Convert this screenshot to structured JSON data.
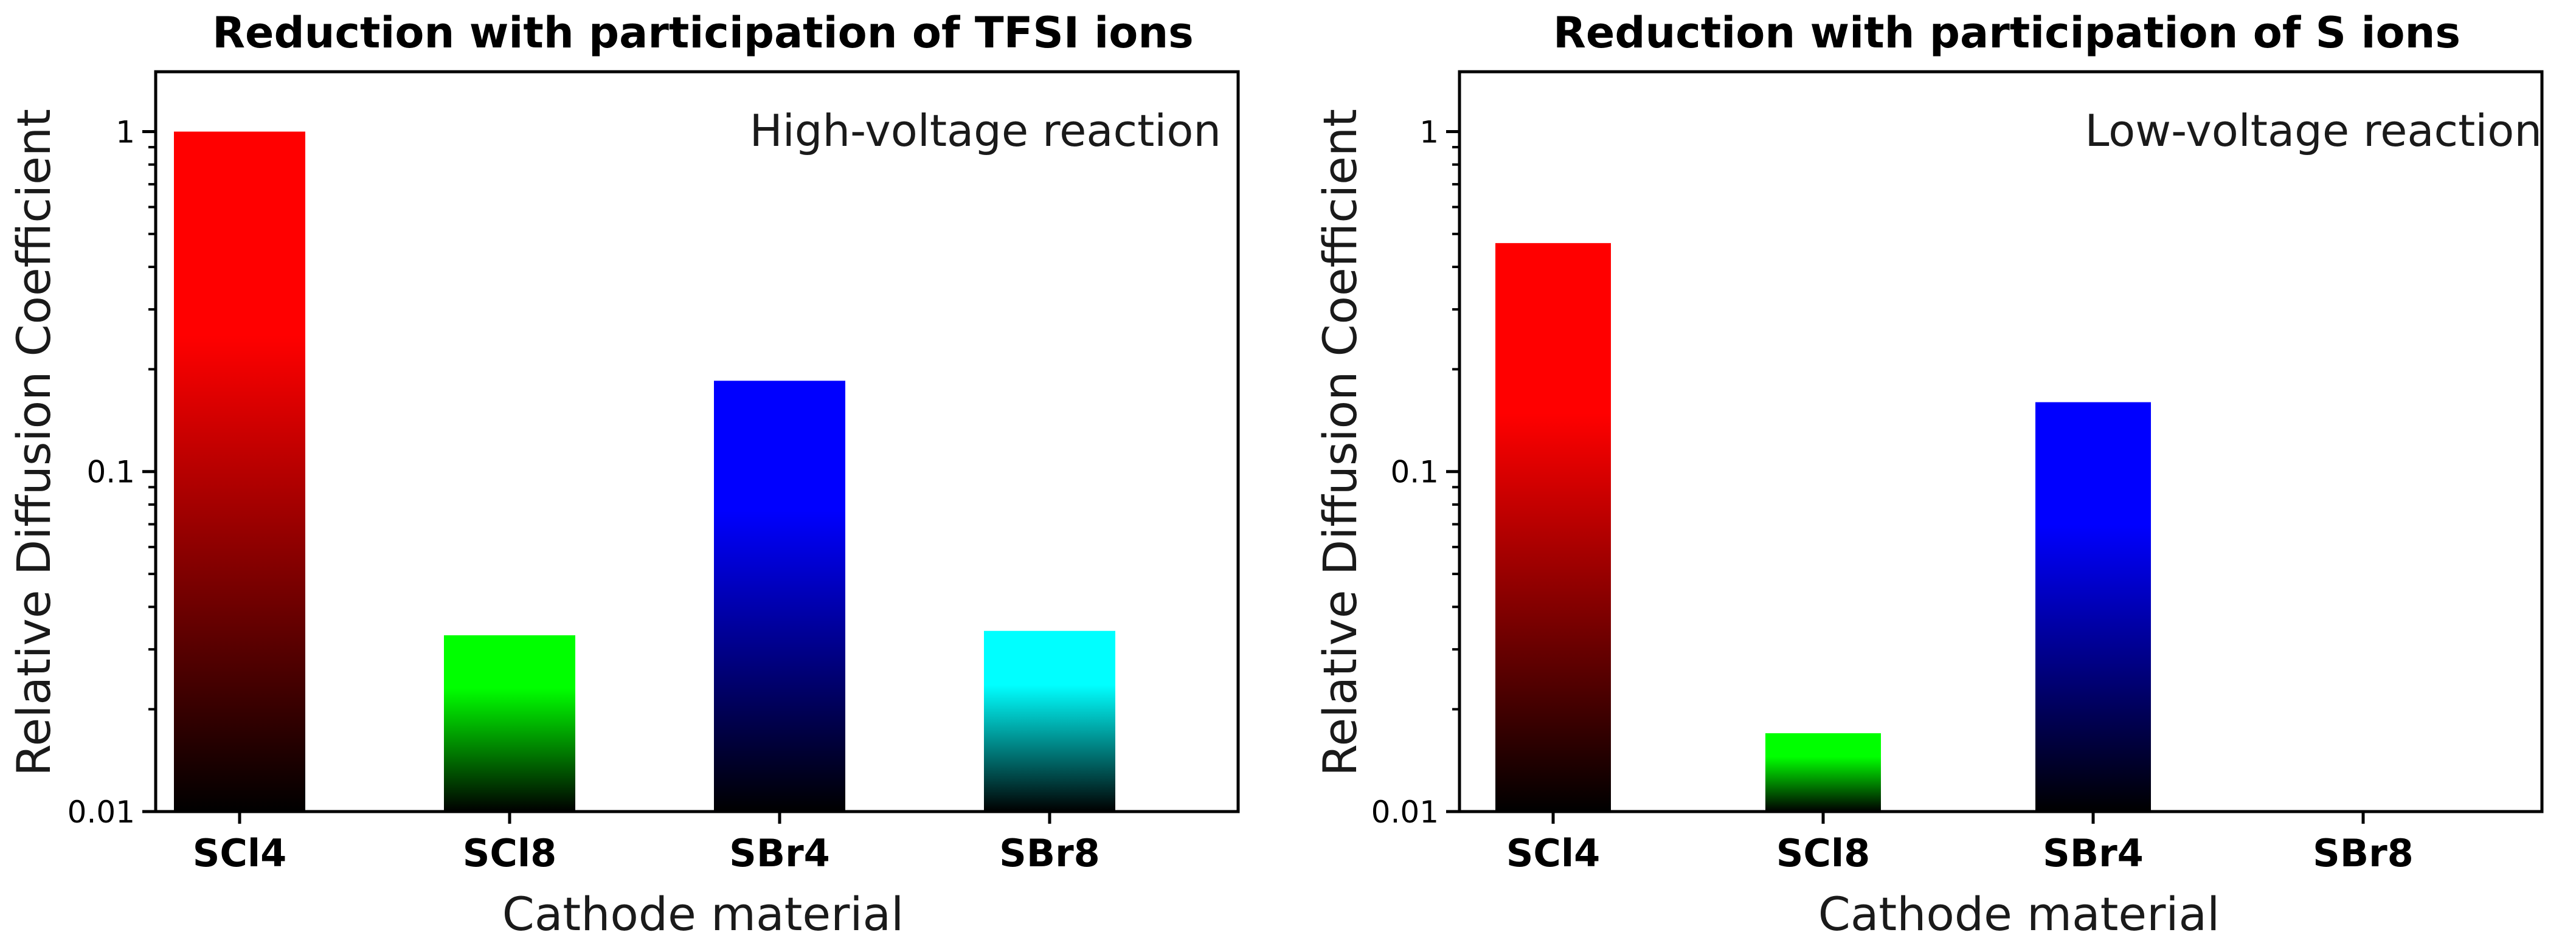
{
  "chart_data": [
    {
      "type": "bar",
      "title": "Reduction with participation of TFSI ions",
      "annotation": "High-voltage reaction",
      "xlabel": "Cathode material",
      "ylabel": "Relative Diffusion Coefficient",
      "yscale": "log",
      "ylim": [
        0.01,
        1.5
      ],
      "yticks": [
        1,
        0.1,
        0.01
      ],
      "ytick_labels": [
        "1",
        "0.1",
        "0.01"
      ],
      "grid": false,
      "categories": [
        "SCl4",
        "SCl8",
        "SBr4",
        "SBr8"
      ],
      "values": [
        1.0,
        0.033,
        0.185,
        0.034
      ],
      "colors": [
        "#ff0000",
        "#00ff00",
        "#0000ff",
        "#00ffff"
      ]
    },
    {
      "type": "bar",
      "title": "Reduction with participation of S ions",
      "annotation": "Low-voltage reaction",
      "xlabel": "Cathode material",
      "ylabel": "Relative Diffusion Coefficient",
      "yscale": "log",
      "ylim": [
        0.01,
        1.5
      ],
      "yticks": [
        1,
        0.1,
        0.01
      ],
      "ytick_labels": [
        "1",
        "0.1",
        "0.01"
      ],
      "grid": false,
      "categories": [
        "SCl4",
        "SCl8",
        "SBr4",
        "SBr8"
      ],
      "values": [
        0.47,
        0.017,
        0.16,
        null
      ],
      "colors": [
        "#ff0000",
        "#00ff00",
        "#0000ff",
        "#00ffff"
      ]
    }
  ]
}
